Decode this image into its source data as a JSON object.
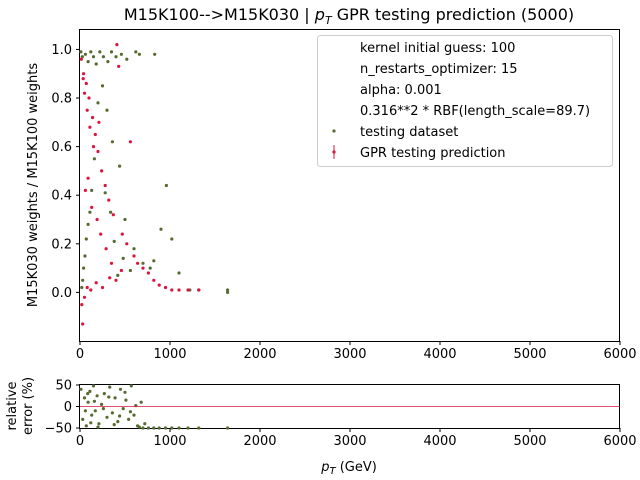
{
  "chart_data": [
    {
      "type": "scatter",
      "title": "M15K100-->M15K030 | p_T GPR testing prediction (5000)",
      "title_prefix": "M15K100-->M15K030 | ",
      "title_sym": "p",
      "title_sub": "T",
      "title_suffix": " GPR testing prediction (5000)",
      "xlabel": "",
      "ylabel": "M15K030 weights / M15K100 weights",
      "xlim": [
        0,
        6000
      ],
      "ylim": [
        -0.2,
        1.08
      ],
      "xticks": [
        "0",
        "1000",
        "2000",
        "3000",
        "4000",
        "5000",
        "6000"
      ],
      "yticks": [
        "0.0",
        "0.2",
        "0.4",
        "0.6",
        "0.8",
        "1.0"
      ],
      "grid": false,
      "legend_position": "top-right",
      "legend_entries": [
        "kernel initial guess: 100",
        "n_restarts_optimizer: 15",
        "alpha: 0.001",
        "0.316**2 * RBF(length_scale=89.7)",
        "testing dataset",
        "GPR testing prediction"
      ],
      "series": [
        {
          "name": "testing dataset",
          "color": "#556b2f",
          "points": [
            [
              10,
              0.99
            ],
            [
              25,
              0.97
            ],
            [
              60,
              0.98
            ],
            [
              90,
              0.95
            ],
            [
              120,
              0.99
            ],
            [
              150,
              0.97
            ],
            [
              180,
              0.94
            ],
            [
              220,
              0.99
            ],
            [
              260,
              0.97
            ],
            [
              310,
              0.95
            ],
            [
              350,
              0.99
            ],
            [
              400,
              0.97
            ],
            [
              460,
              0.98
            ],
            [
              520,
              0.96
            ],
            [
              620,
              0.99
            ],
            [
              660,
              0.98
            ],
            [
              830,
              0.98
            ],
            [
              960,
              0.44
            ],
            [
              1020,
              0.22
            ],
            [
              900,
              0.26
            ],
            [
              700,
              0.12
            ],
            [
              780,
              0.1
            ],
            [
              820,
              0.13
            ],
            [
              1100,
              0.08
            ],
            [
              1220,
              0.01
            ],
            [
              1320,
              0.01
            ],
            [
              1640,
              0.01
            ],
            [
              1640,
              0.0
            ],
            [
              500,
              0.3
            ],
            [
              440,
              0.52
            ],
            [
              360,
              0.62
            ],
            [
              300,
              0.75
            ],
            [
              250,
              0.85
            ],
            [
              200,
              0.78
            ],
            [
              160,
              0.55
            ],
            [
              130,
              0.42
            ],
            [
              110,
              0.33
            ],
            [
              90,
              0.28
            ],
            [
              70,
              0.22
            ],
            [
              55,
              0.15
            ],
            [
              40,
              0.1
            ],
            [
              30,
              0.05
            ],
            [
              20,
              0.02
            ],
            [
              600,
              0.18
            ],
            [
              560,
              0.09
            ],
            [
              480,
              0.14
            ],
            [
              420,
              0.07
            ],
            [
              380,
              0.21
            ],
            [
              340,
              0.33
            ],
            [
              280,
              0.41
            ]
          ]
        },
        {
          "name": "GPR testing prediction",
          "color": "#dc143c",
          "points": [
            [
              15,
              0.96
            ],
            [
              40,
              0.9
            ],
            [
              70,
              0.86
            ],
            [
              100,
              0.8
            ],
            [
              140,
              0.72
            ],
            [
              170,
              0.65
            ],
            [
              200,
              0.58
            ],
            [
              240,
              0.5
            ],
            [
              280,
              0.44
            ],
            [
              320,
              0.38
            ],
            [
              370,
              0.32
            ],
            [
              410,
              1.02
            ],
            [
              430,
              0.93
            ],
            [
              470,
              0.24
            ],
            [
              520,
              0.2
            ],
            [
              560,
              0.62
            ],
            [
              600,
              0.15
            ],
            [
              640,
              0.12
            ],
            [
              700,
              0.1
            ],
            [
              760,
              0.08
            ],
            [
              820,
              0.05
            ],
            [
              880,
              0.03
            ],
            [
              950,
              0.02
            ],
            [
              1020,
              0.01
            ],
            [
              1100,
              0.01
            ],
            [
              1200,
              0.01
            ],
            [
              1320,
              0.01
            ],
            [
              20,
              -0.05
            ],
            [
              30,
              -0.13
            ],
            [
              50,
              -0.02
            ],
            [
              80,
              0.02
            ],
            [
              120,
              0.01
            ],
            [
              180,
              0.04
            ],
            [
              250,
              0.02
            ],
            [
              330,
              0.06
            ],
            [
              400,
              0.05
            ],
            [
              460,
              0.09
            ],
            [
              60,
              0.42
            ],
            [
              90,
              0.47
            ],
            [
              130,
              0.35
            ],
            [
              190,
              0.3
            ],
            [
              230,
              0.24
            ],
            [
              290,
              0.18
            ],
            [
              350,
              0.12
            ],
            [
              150,
              0.6
            ],
            [
              110,
              0.68
            ],
            [
              80,
              0.75
            ],
            [
              50,
              0.82
            ],
            [
              35,
              0.88
            ],
            [
              210,
              0.7
            ]
          ]
        }
      ]
    },
    {
      "type": "scatter",
      "title": "",
      "xlabel": "p_T (GeV)",
      "xlabel_sym": "p",
      "xlabel_sub": "T",
      "xlabel_suffix": " (GeV)",
      "ylabel": "relative error (%)",
      "ylabel_line1": "relative",
      "ylabel_line2": "error (%)",
      "xlim": [
        0,
        6000
      ],
      "ylim": [
        -50,
        50
      ],
      "xticks": [
        "0",
        "1000",
        "2000",
        "3000",
        "4000",
        "5000",
        "6000"
      ],
      "yticks": [
        "50",
        "0",
        "−50"
      ],
      "reference_line": {
        "y": 0,
        "color": "#dc143c"
      },
      "series": [
        {
          "name": "",
          "color": "#556b2f",
          "points": [
            [
              10,
              40
            ],
            [
              30,
              -30
            ],
            [
              50,
              20
            ],
            [
              70,
              -45
            ],
            [
              90,
              10
            ],
            [
              110,
              35
            ],
            [
              130,
              -20
            ],
            [
              150,
              48
            ],
            [
              170,
              -10
            ],
            [
              190,
              25
            ],
            [
              210,
              -40
            ],
            [
              240,
              5
            ],
            [
              270,
              30
            ],
            [
              300,
              -25
            ],
            [
              330,
              45
            ],
            [
              360,
              -15
            ],
            [
              390,
              20
            ],
            [
              420,
              -35
            ],
            [
              450,
              40
            ],
            [
              480,
              -5
            ],
            [
              510,
              15
            ],
            [
              540,
              -30
            ],
            [
              570,
              48
            ],
            [
              600,
              -20
            ],
            [
              640,
              -45
            ],
            [
              680,
              10
            ],
            [
              700,
              -50
            ],
            [
              760,
              -50
            ],
            [
              820,
              -50
            ],
            [
              880,
              -50
            ],
            [
              950,
              -50
            ],
            [
              1020,
              -50
            ],
            [
              1100,
              -50
            ],
            [
              1200,
              -50
            ],
            [
              1320,
              -50
            ],
            [
              1640,
              -50
            ],
            [
              60,
              -10
            ],
            [
              85,
              30
            ],
            [
              120,
              -38
            ],
            [
              160,
              12
            ],
            [
              200,
              -48
            ],
            [
              260,
              -5
            ],
            [
              320,
              22
            ],
            [
              380,
              -42
            ],
            [
              440,
              -22
            ],
            [
              500,
              33
            ],
            [
              560,
              -12
            ],
            [
              620,
              2
            ],
            [
              660,
              -48
            ],
            [
              720,
              -40
            ]
          ]
        }
      ]
    }
  ]
}
